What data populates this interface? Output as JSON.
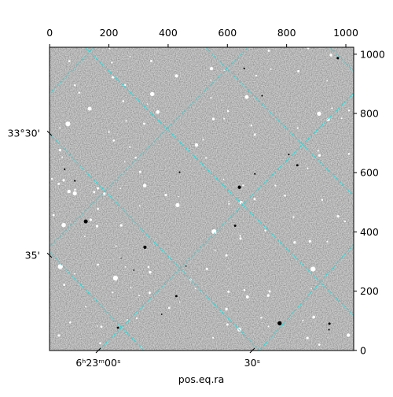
{
  "chart_data": {
    "type": "image",
    "xlabel": "pos.eq.ra",
    "xlim": [
      -0.5,
      1026.5
    ],
    "xticks": [
      0,
      200,
      400,
      600,
      800,
      1000
    ],
    "ylim": [
      -0.5,
      1023.5
    ],
    "yticks": [
      0,
      200,
      400,
      600,
      800,
      1000
    ],
    "ra_ticks": [
      {
        "value": 164,
        "label": "6ʰ23ᵐ00ˢ"
      },
      {
        "value": 684,
        "label": "30ˢ"
      }
    ],
    "dec_ticks": [
      {
        "value": 733,
        "label": "33°30'"
      },
      {
        "value": 321,
        "label": "35'"
      }
    ]
  }
}
